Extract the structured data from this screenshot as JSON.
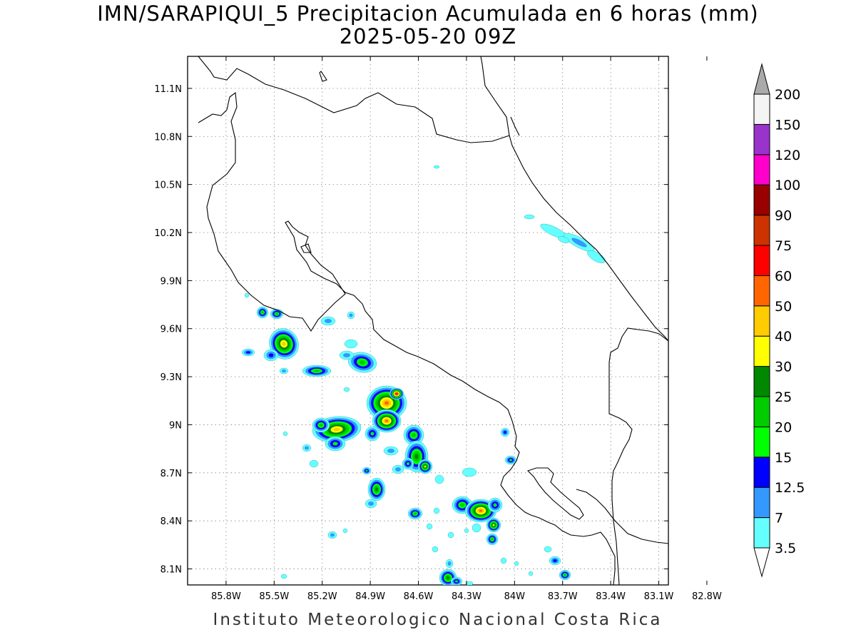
{
  "map": {
    "title_line1": "IMN/SARAPIQUI_5 Precipitacion Acumulada en 6 horas (mm)",
    "title_line2": "2025-05-20 09Z",
    "footer": "Instituto Meteorologico Nacional Costa Rica",
    "lon_ticks": [
      "85.8W",
      "85.5W",
      "85.2W",
      "84.9W",
      "84.6W",
      "84.3W",
      "84W",
      "83.7W",
      "83.4W",
      "83.1W",
      "82.8W"
    ],
    "lat_ticks": [
      "11.1N",
      "10.8N",
      "10.5N",
      "10.2N",
      "9.9N",
      "9.6N",
      "9.3N",
      "9N",
      "8.7N",
      "8.4N",
      "8.1N"
    ],
    "lon_values": [
      -85.8,
      -85.5,
      -85.2,
      -84.9,
      -84.6,
      -84.3,
      -84.0,
      -83.7,
      -83.4,
      -83.1,
      -82.8
    ],
    "lat_values": [
      11.1,
      10.8,
      10.5,
      10.2,
      9.9,
      9.6,
      9.3,
      9.0,
      8.7,
      8.4,
      8.1
    ],
    "lon_range": [
      -86.04,
      -83.04
    ],
    "lat_range": [
      8.0,
      11.3
    ],
    "grid": "dotted"
  },
  "colorbar": {
    "levels": [
      "3.5",
      "7",
      "12.5",
      "15",
      "20",
      "25",
      "30",
      "40",
      "50",
      "60",
      "75",
      "90",
      "100",
      "120",
      "150",
      "200"
    ],
    "colors": [
      "#66ffff",
      "#3399ff",
      "#0000ff",
      "#00ff00",
      "#00cc00",
      "#008800",
      "#ffff00",
      "#ffcc00",
      "#ff6600",
      "#ff0000",
      "#cc3300",
      "#990000",
      "#ff00cc",
      "#9933cc",
      "#f4f4f4",
      "#aaaaaa"
    ]
  }
}
